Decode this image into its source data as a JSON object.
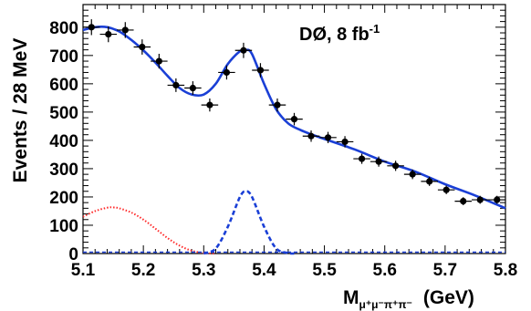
{
  "chart_data": {
    "type": "scatter",
    "annotation": "DØ, 8 fb",
    "annotation_sup": "-1",
    "ylabel": "Events / 28 MeV",
    "xlabel_main": "M",
    "xlabel_sub": "μ⁺μ⁻π⁺π⁻",
    "xlabel_unit": "(GeV)",
    "xlim": [
      5.1,
      5.8
    ],
    "ylim": [
      0,
      880
    ],
    "x_ticks": [
      "5.1",
      "5.2",
      "5.3",
      "5.4",
      "5.5",
      "5.6",
      "5.7",
      "5.8"
    ],
    "y_ticks": [
      "0",
      "100",
      "200",
      "300",
      "400",
      "500",
      "600",
      "700",
      "800"
    ],
    "grid": false,
    "series": [
      {
        "style": "points-with-errorbars",
        "color": "#000000",
        "x_err": 0.014,
        "x": [
          5.114,
          5.142,
          5.17,
          5.198,
          5.226,
          5.254,
          5.282,
          5.31,
          5.338,
          5.366,
          5.394,
          5.422,
          5.45,
          5.478,
          5.506,
          5.534,
          5.562,
          5.59,
          5.618,
          5.646,
          5.674,
          5.702,
          5.73,
          5.758,
          5.786
        ],
        "y": [
          800,
          775,
          790,
          730,
          680,
          595,
          585,
          525,
          640,
          718,
          648,
          525,
          475,
          415,
          410,
          395,
          335,
          325,
          310,
          280,
          255,
          225,
          185,
          190,
          190
        ],
        "y_err": [
          28,
          28,
          28,
          27,
          26,
          24,
          24,
          23,
          25,
          27,
          25,
          23,
          22,
          20,
          20,
          20,
          18,
          18,
          18,
          17,
          16,
          15,
          14,
          14,
          14
        ]
      },
      {
        "style": "solid",
        "color": "#1a3fd6",
        "x": [
          5.1,
          5.12,
          5.14,
          5.16,
          5.18,
          5.2,
          5.22,
          5.24,
          5.26,
          5.28,
          5.3,
          5.32,
          5.34,
          5.36,
          5.37,
          5.38,
          5.4,
          5.42,
          5.44,
          5.46,
          5.48,
          5.5,
          5.55,
          5.6,
          5.65,
          5.7,
          5.75,
          5.8
        ],
        "y": [
          790,
          800,
          800,
          785,
          755,
          718,
          675,
          628,
          585,
          562,
          562,
          600,
          670,
          715,
          720,
          705,
          600,
          510,
          460,
          437,
          420,
          405,
          368,
          325,
          290,
          245,
          205,
          160
        ]
      },
      {
        "style": "dotted",
        "color": "#ff2a2a",
        "x": [
          5.1,
          5.12,
          5.14,
          5.15,
          5.16,
          5.18,
          5.2,
          5.22,
          5.24,
          5.26,
          5.28,
          5.3,
          5.32
        ],
        "y": [
          130,
          150,
          162,
          163,
          160,
          145,
          120,
          88,
          55,
          28,
          10,
          2,
          0
        ]
      },
      {
        "style": "dashed",
        "color": "#1a3fd6",
        "x": [
          5.3,
          5.32,
          5.34,
          5.36,
          5.37,
          5.38,
          5.4,
          5.42,
          5.44,
          5.45
        ],
        "y": [
          0,
          18,
          95,
          200,
          220,
          200,
          95,
          18,
          2,
          0
        ]
      }
    ]
  }
}
